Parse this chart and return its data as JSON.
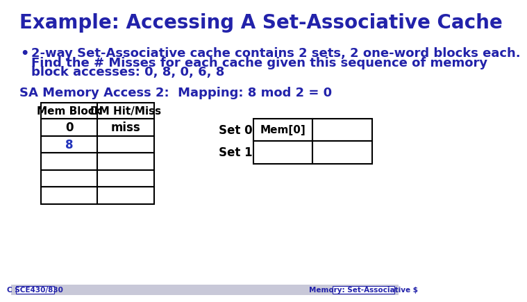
{
  "title": "Example: Accessing A Set-Associative Cache",
  "title_color": "#2222aa",
  "title_fontsize": 20,
  "bg_color": "#ffffff",
  "bullet_text_line1": "2-way Set-Associative cache contains 2 sets, 2 one-word blocks each.",
  "bullet_text_line2": "Find the # Misses for each cache given this sequence of memory",
  "bullet_text_line3": "block accesses: 0, 8, 0, 6, 8",
  "bullet_color": "#2222aa",
  "bullet_fontsize": 13,
  "sa_label": "SA Memory Access 2:  Mapping: 8 mod 2 = 0",
  "sa_label_color": "#2222aa",
  "sa_label_fontsize": 13,
  "table_col_headers": [
    "Mem Block",
    "DM Hit/Miss"
  ],
  "table_rows": [
    [
      "0",
      "miss"
    ],
    [
      "8",
      ""
    ],
    [
      "",
      ""
    ],
    [
      "",
      ""
    ],
    [
      "",
      ""
    ]
  ],
  "table_row8_color": "#2233bb",
  "set_labels": [
    "Set 0",
    "Set 1"
  ],
  "cache_cells": [
    [
      "Mem[0]",
      ""
    ],
    [
      "",
      ""
    ]
  ],
  "footer_left": "C SCE430/830",
  "footer_right": "Memory: Set-Associative $",
  "footer_color": "#2222aa",
  "footer_bg": "#c8c8d8",
  "footer_fontsize": 7.5
}
